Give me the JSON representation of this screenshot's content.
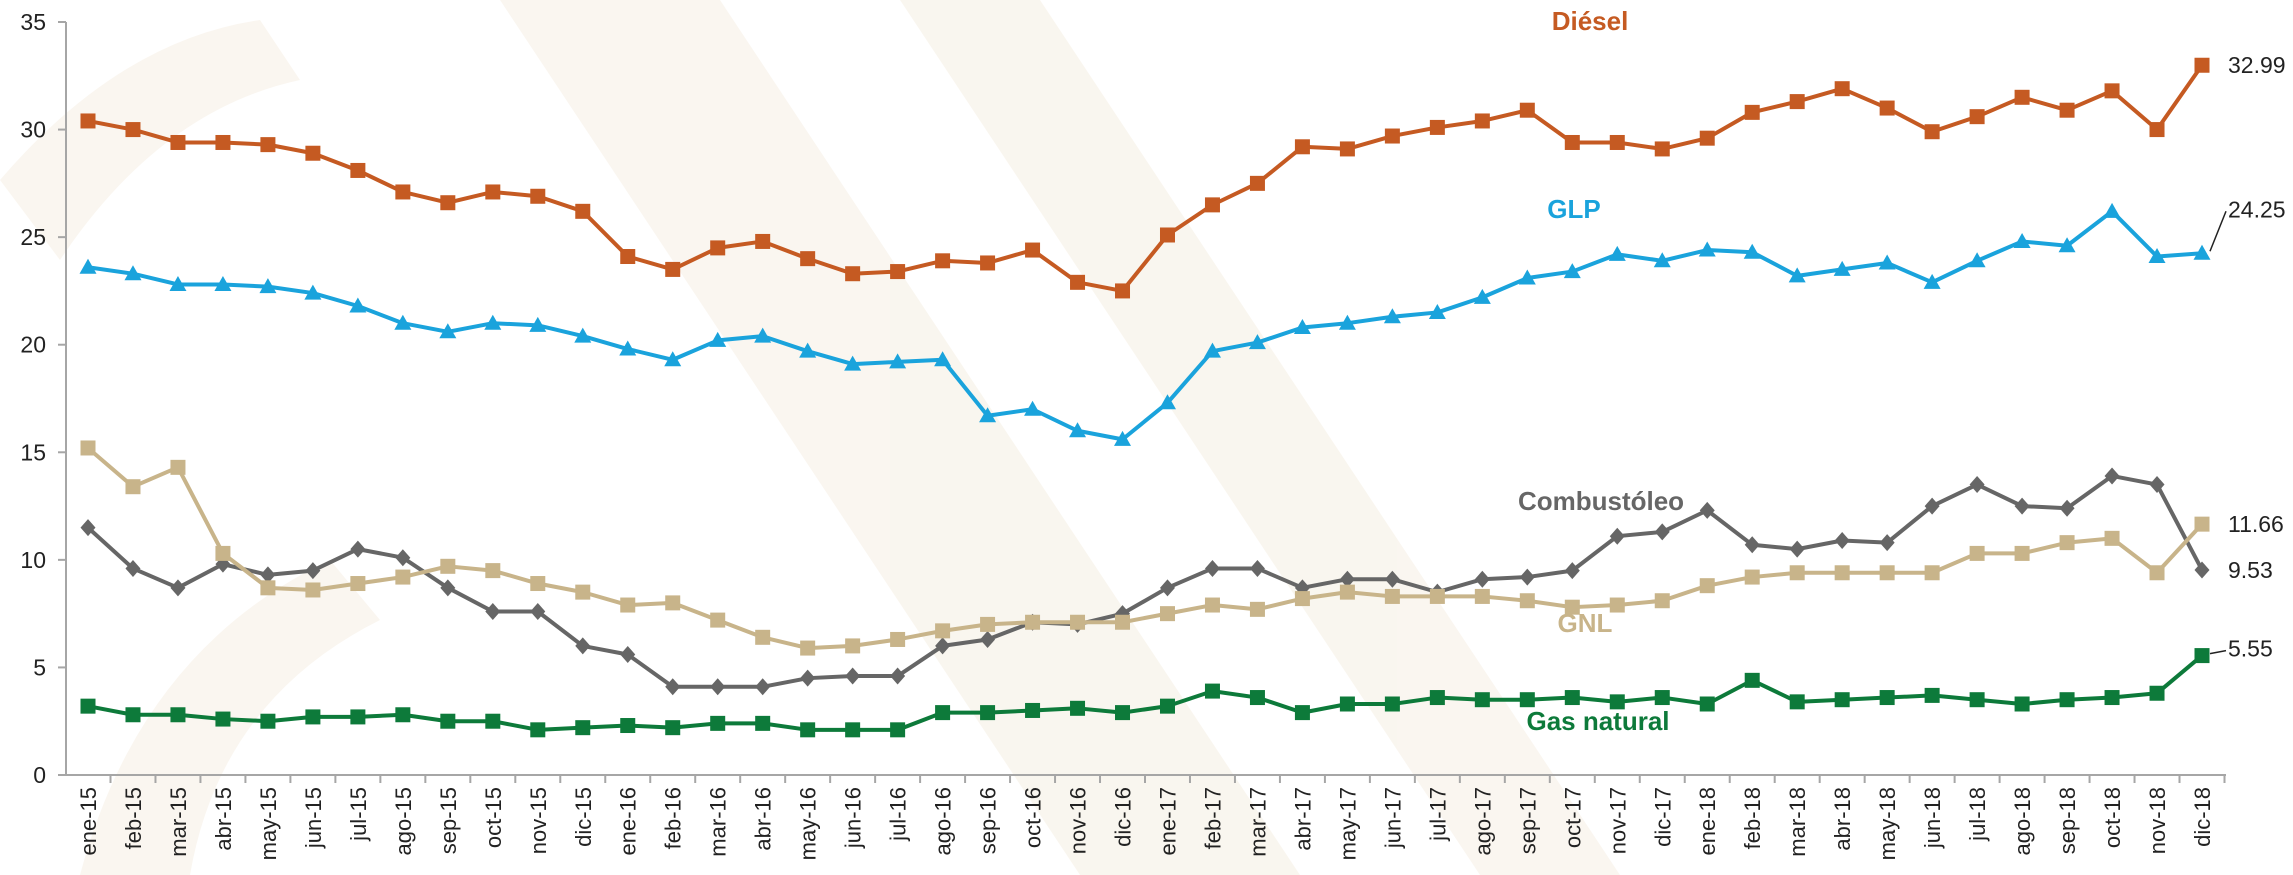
{
  "chart_data": {
    "type": "line",
    "categories": [
      "ene-15",
      "feb-15",
      "mar-15",
      "abr-15",
      "may-15",
      "jun-15",
      "jul-15",
      "ago-15",
      "sep-15",
      "oct-15",
      "nov-15",
      "dic-15",
      "ene-16",
      "feb-16",
      "mar-16",
      "abr-16",
      "may-16",
      "jun-16",
      "jul-16",
      "ago-16",
      "sep-16",
      "oct-16",
      "nov-16",
      "dic-16",
      "ene-17",
      "feb-17",
      "mar-17",
      "abr-17",
      "may-17",
      "jun-17",
      "jul-17",
      "ago-17",
      "sep-17",
      "oct-17",
      "nov-17",
      "dic-17",
      "ene-18",
      "feb-18",
      "mar-18",
      "abr-18",
      "may-18",
      "jun-18",
      "jul-18",
      "ago-18",
      "sep-18",
      "oct-18",
      "nov-18",
      "dic-18"
    ],
    "ylim": [
      0,
      35
    ],
    "yticks": [
      0,
      5,
      10,
      15,
      20,
      25,
      30,
      35
    ],
    "grid": false,
    "series": [
      {
        "name": "Diésel",
        "color": "#c55a22",
        "marker": "square",
        "values": [
          30.4,
          30.0,
          29.4,
          29.4,
          29.3,
          28.9,
          28.1,
          27.1,
          26.6,
          27.1,
          26.9,
          26.2,
          24.1,
          23.5,
          24.5,
          24.8,
          24.0,
          23.3,
          23.4,
          23.9,
          23.8,
          24.4,
          22.9,
          22.5,
          25.1,
          26.5,
          27.5,
          29.2,
          29.1,
          29.7,
          30.1,
          30.4,
          30.9,
          29.4,
          29.4,
          29.1,
          29.6,
          30.8,
          31.3,
          31.9,
          31.0,
          29.9,
          30.6,
          31.5,
          30.9,
          31.8,
          30.0,
          32.99
        ]
      },
      {
        "name": "GLP",
        "color": "#1aa3dc",
        "marker": "triangle",
        "values": [
          23.6,
          23.3,
          22.8,
          22.8,
          22.7,
          22.4,
          21.8,
          21.0,
          20.6,
          21.0,
          20.9,
          20.4,
          19.8,
          19.3,
          20.2,
          20.4,
          19.7,
          19.1,
          19.2,
          19.3,
          16.7,
          17.0,
          16.0,
          15.6,
          17.3,
          19.7,
          20.1,
          20.8,
          21.0,
          21.3,
          21.5,
          22.2,
          23.1,
          23.4,
          24.2,
          23.9,
          24.4,
          24.3,
          23.2,
          23.5,
          23.8,
          22.9,
          23.9,
          24.8,
          24.6,
          26.2,
          24.1,
          24.25
        ]
      },
      {
        "name": "Combustóleo",
        "color": "#666666",
        "marker": "diamond",
        "values": [
          11.5,
          9.6,
          8.7,
          9.8,
          9.3,
          9.5,
          10.5,
          10.1,
          8.7,
          7.6,
          7.6,
          6.0,
          5.6,
          4.1,
          4.1,
          4.1,
          4.5,
          4.6,
          4.6,
          6.0,
          6.3,
          7.1,
          7.0,
          7.5,
          8.7,
          9.6,
          9.6,
          8.7,
          9.1,
          9.1,
          8.5,
          9.1,
          9.2,
          9.5,
          11.1,
          11.3,
          12.3,
          10.7,
          10.5,
          10.9,
          10.8,
          12.5,
          13.5,
          12.5,
          12.4,
          13.9,
          13.5,
          9.53
        ]
      },
      {
        "name": "GNL",
        "color": "#c8b48a",
        "marker": "square",
        "values": [
          15.2,
          13.4,
          14.3,
          10.3,
          8.7,
          8.6,
          8.9,
          9.2,
          9.7,
          9.5,
          8.9,
          8.5,
          7.9,
          8.0,
          7.2,
          6.4,
          5.9,
          6.0,
          6.3,
          6.7,
          7.0,
          7.1,
          7.1,
          7.1,
          7.5,
          7.9,
          7.7,
          8.2,
          8.5,
          8.3,
          8.3,
          8.3,
          8.1,
          7.8,
          7.9,
          8.1,
          8.8,
          9.2,
          9.4,
          9.4,
          9.4,
          9.4,
          10.3,
          10.3,
          10.8,
          11.0,
          9.4,
          11.66
        ]
      },
      {
        "name": "Gas natural",
        "color": "#0d7a3a",
        "marker": "square",
        "values": [
          3.2,
          2.8,
          2.8,
          2.6,
          2.5,
          2.7,
          2.7,
          2.8,
          2.5,
          2.5,
          2.1,
          2.2,
          2.3,
          2.2,
          2.4,
          2.4,
          2.1,
          2.1,
          2.1,
          2.9,
          2.9,
          3.0,
          3.1,
          2.9,
          3.2,
          3.9,
          3.6,
          2.9,
          3.3,
          3.3,
          3.6,
          3.5,
          3.5,
          3.6,
          3.4,
          3.6,
          3.3,
          4.4,
          3.4,
          3.5,
          3.6,
          3.7,
          3.5,
          3.3,
          3.5,
          3.6,
          3.8,
          5.55
        ]
      }
    ]
  }
}
